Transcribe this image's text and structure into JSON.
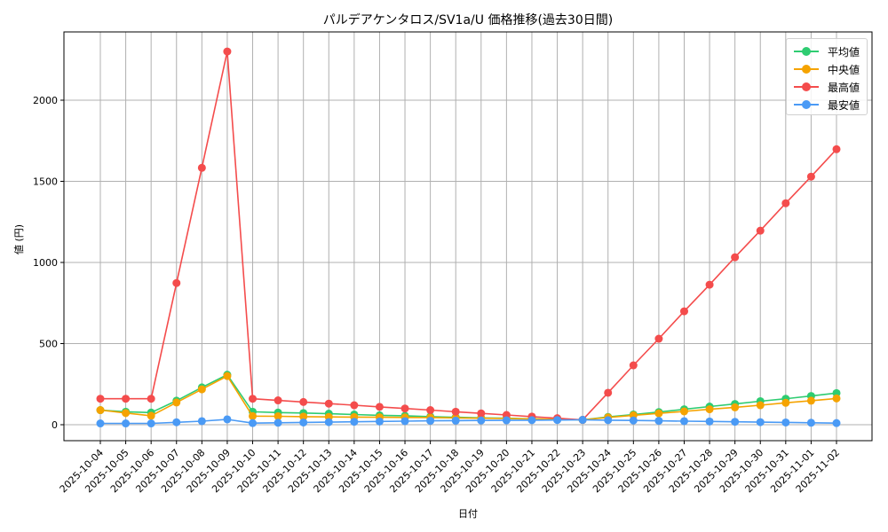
{
  "chart_data": {
    "type": "line",
    "title": "パルデアケンタロス/SV1a/U 価格推移(過去30日間)",
    "xlabel": "日付",
    "ylabel": "値 (円)",
    "ylim": [
      -100,
      2400
    ],
    "yticks": [
      0,
      500,
      1000,
      1500,
      2000
    ],
    "grid": true,
    "legend_position": "upper right",
    "categories": [
      "2025-10-04",
      "2025-10-05",
      "2025-10-06",
      "2025-10-07",
      "2025-10-08",
      "2025-10-09",
      "2025-10-10",
      "2025-10-11",
      "2025-10-12",
      "2025-10-13",
      "2025-10-14",
      "2025-10-15",
      "2025-10-16",
      "2025-10-17",
      "2025-10-18",
      "2025-10-19",
      "2025-10-20",
      "2025-10-21",
      "2025-10-22",
      "2025-10-23",
      "2025-10-24",
      "2025-10-25",
      "2025-10-26",
      "2025-10-27",
      "2025-10-28",
      "2025-10-29",
      "2025-10-30",
      "2025-10-31",
      "2025-11-01",
      "2025-11-02"
    ],
    "series": [
      {
        "name": "平均値",
        "color": "#2ecc71",
        "values": [
          90,
          80,
          75,
          148,
          230,
          308,
          80,
          75,
          72,
          68,
          63,
          58,
          55,
          50,
          46,
          42,
          40,
          36,
          33,
          30,
          48,
          63,
          78,
          95,
          112,
          128,
          145,
          160,
          177,
          195
        ]
      },
      {
        "name": "中央値",
        "color": "#f5a300",
        "values": [
          90,
          72,
          55,
          137,
          218,
          300,
          53,
          52,
          50,
          48,
          47,
          46,
          45,
          44,
          42,
          40,
          38,
          35,
          33,
          30,
          45,
          58,
          70,
          82,
          95,
          107,
          120,
          135,
          148,
          162
        ]
      },
      {
        "name": "最高値",
        "color": "#f44c4c",
        "values": [
          160,
          160,
          160,
          873,
          1583,
          2300,
          160,
          150,
          140,
          130,
          120,
          110,
          100,
          90,
          80,
          70,
          60,
          50,
          40,
          30,
          197,
          366,
          530,
          699,
          863,
          1032,
          1196,
          1365,
          1529,
          1698
        ]
      },
      {
        "name": "最安値",
        "color": "#4a9af5",
        "values": [
          8,
          8,
          8,
          15,
          22,
          33,
          10,
          12,
          14,
          16,
          18,
          20,
          22,
          24,
          25,
          26,
          27,
          28,
          29,
          30,
          28,
          26,
          24,
          22,
          20,
          18,
          16,
          14,
          12,
          10
        ]
      }
    ]
  }
}
